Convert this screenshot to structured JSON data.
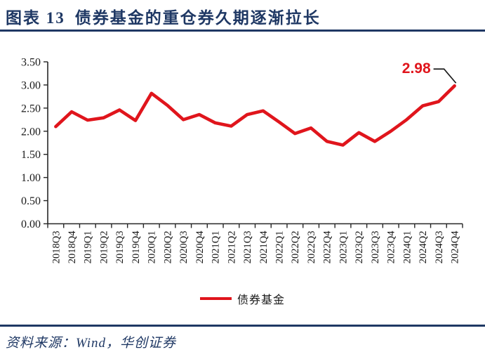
{
  "header": {
    "label": "图表 13",
    "title": "债券基金的重仓券久期逐渐拉长"
  },
  "chart_data": {
    "type": "line",
    "title": "债券基金的重仓券久期逐渐拉长",
    "categories": [
      "2018Q3",
      "2018Q4",
      "2019Q1",
      "2019Q2",
      "2019Q3",
      "2019Q4",
      "2020Q1",
      "2020Q2",
      "2020Q3",
      "2020Q4",
      "2021Q1",
      "2021Q2",
      "2021Q3",
      "2021Q4",
      "2022Q1",
      "2022Q2",
      "2022Q3",
      "2022Q4",
      "2023Q1",
      "2023Q2",
      "2023Q3",
      "2023Q4",
      "2024Q1",
      "2024Q2",
      "2024Q3",
      "2024Q4"
    ],
    "series": [
      {
        "name": "债券基金",
        "color": "#e0151c",
        "values": [
          2.1,
          2.42,
          2.24,
          2.29,
          2.46,
          2.23,
          2.82,
          2.56,
          2.25,
          2.36,
          2.18,
          2.11,
          2.36,
          2.44,
          2.2,
          1.95,
          2.07,
          1.78,
          1.7,
          1.97,
          1.78,
          2.0,
          2.25,
          2.55,
          2.64,
          2.98
        ]
      }
    ],
    "ylim": [
      0,
      3.5
    ],
    "ytick_labels": [
      "0.00",
      "0.50",
      "1.00",
      "1.50",
      "2.00",
      "2.50",
      "3.00",
      "3.50"
    ],
    "grid": "off",
    "legend_position": "bottom",
    "annotation": {
      "text": "2.98",
      "category": "2024Q4",
      "color": "#e0151c"
    }
  },
  "colors": {
    "accent_red": "#e0151c",
    "navy": "#1f3864",
    "axis_black": "#262626"
  },
  "footer": {
    "source": "资料来源：Wind，华创证券"
  }
}
